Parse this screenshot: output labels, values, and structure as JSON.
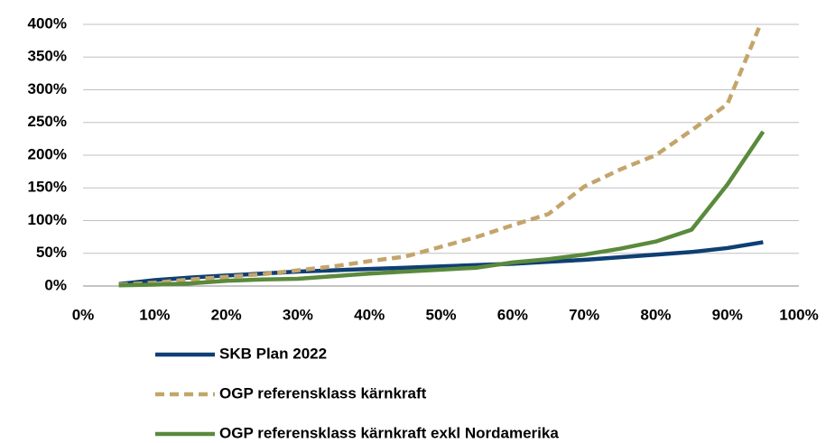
{
  "chart_data": {
    "type": "line",
    "x": [
      5,
      10,
      15,
      20,
      25,
      30,
      35,
      40,
      45,
      50,
      55,
      60,
      65,
      70,
      75,
      80,
      85,
      90,
      95
    ],
    "series": [
      {
        "name": "SKB Plan 2022",
        "color": "#0f3f73",
        "dash": false,
        "values": [
          3,
          9,
          13,
          16,
          19,
          22,
          24,
          26,
          28,
          30,
          32,
          34,
          37,
          40,
          44,
          48,
          52,
          58,
          67
        ]
      },
      {
        "name": "OGP referensklass kärnkraft",
        "color": "#c3a56b",
        "dash": true,
        "values": [
          2,
          5,
          10,
          14,
          18,
          24,
          30,
          38,
          45,
          60,
          75,
          93,
          110,
          152,
          178,
          200,
          238,
          278,
          410
        ]
      },
      {
        "name": "OGP referensklass kärnkraft exkl Nordamerika",
        "color": "#5a8a3c",
        "dash": false,
        "values": [
          1,
          2,
          4,
          8,
          10,
          11,
          15,
          19,
          22,
          25,
          28,
          36,
          41,
          48,
          57,
          68,
          86,
          155,
          236
        ]
      }
    ],
    "xlim": [
      0,
      100
    ],
    "xticks": [
      {
        "value": 0,
        "label": "0%"
      },
      {
        "value": 10,
        "label": "10%"
      },
      {
        "value": 20,
        "label": "20%"
      },
      {
        "value": 30,
        "label": "30%"
      },
      {
        "value": 40,
        "label": "40%"
      },
      {
        "value": 50,
        "label": "50%"
      },
      {
        "value": 60,
        "label": "60%"
      },
      {
        "value": 70,
        "label": "70%"
      },
      {
        "value": 80,
        "label": "80%"
      },
      {
        "value": 90,
        "label": "90%"
      },
      {
        "value": 100,
        "label": "100%"
      }
    ],
    "ylim": [
      0,
      400
    ],
    "yticks": [
      {
        "value": 0,
        "label": "0%"
      },
      {
        "value": 50,
        "label": "50%"
      },
      {
        "value": 100,
        "label": "100%"
      },
      {
        "value": 150,
        "label": "150%"
      },
      {
        "value": 200,
        "label": "200%"
      },
      {
        "value": 250,
        "label": "250%"
      },
      {
        "value": 300,
        "label": "300%"
      },
      {
        "value": 350,
        "label": "350%"
      },
      {
        "value": 400,
        "label": "400%"
      }
    ],
    "grid": true,
    "legend": "bottom"
  }
}
